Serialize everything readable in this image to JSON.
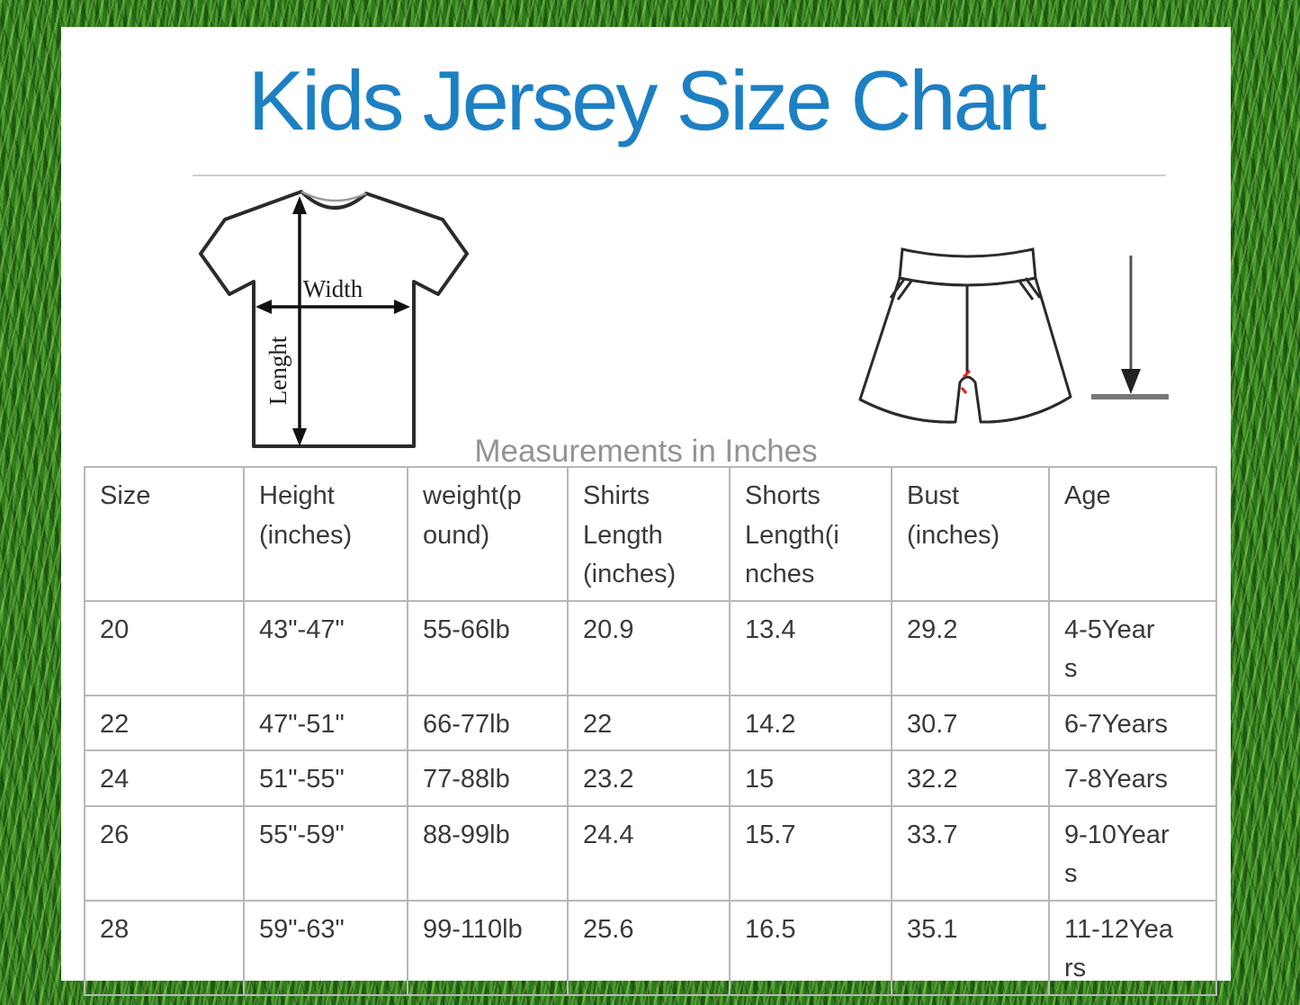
{
  "page": {
    "title": "Kids Jersey Size Chart",
    "subtitle": "Measurements in Inches"
  },
  "diagram": {
    "shirt_width_label": "Width",
    "shirt_length_label": "Lenght"
  },
  "colors": {
    "title_blue": "#1d80c3",
    "subtitle_gray": "#939393",
    "table_border_gray": "#b7b7b7",
    "table_text": "#3a3a3a",
    "grass_green": "#2c7d1c",
    "stitch_red": "#e02020"
  },
  "table": {
    "headers": [
      "Size",
      "Height\n(inches)",
      "weight(p\nound)",
      "Shirts\nLength\n(inches)",
      "Shorts\nLength(i\nnches",
      "Bust\n(inches)",
      "Age"
    ],
    "rows": [
      [
        "20",
        "43\"-47\"",
        "55-66lb",
        "20.9",
        "13.4",
        "29.2",
        "4-5Year\ns"
      ],
      [
        "22",
        "47\"-51\"",
        "66-77lb",
        "22",
        "14.2",
        "30.7",
        "6-7Years"
      ],
      [
        "24",
        "51\"-55\"",
        "77-88lb",
        "23.2",
        "15",
        "32.2",
        "7-8Years"
      ],
      [
        "26",
        "55\"-59\"",
        "88-99lb",
        "24.4",
        "15.7",
        "33.7",
        "9-10Year\ns"
      ],
      [
        "28",
        "59\"-63\"",
        "99-110lb",
        "25.6",
        "16.5",
        "35.1",
        "11-12Yea\nrs"
      ]
    ]
  }
}
